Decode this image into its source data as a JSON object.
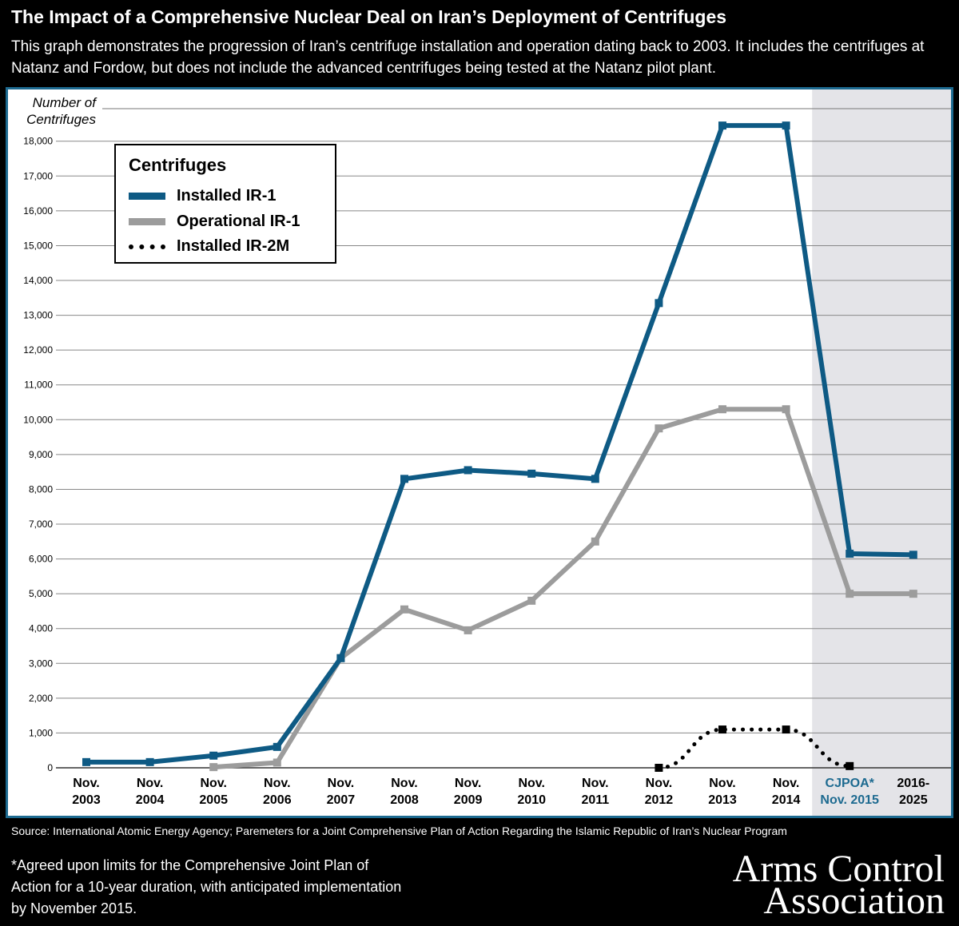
{
  "header": {
    "title": "The Impact of a Comprehensive Nuclear Deal on Iran’s Deployment of Centrifuges",
    "subtitle": "This graph demonstrates the progression of Iran’s centrifuge installation and operation dating back to 2003. It includes the centrifuges at Natanz and Fordow, but does not include the advanced centrifuges being tested at the Natanz pilot plant."
  },
  "footer": {
    "source": "Source: International Atomic Energy Agency; Paremeters for a Joint Comprehensive Plan of Action Regarding the Islamic Republic of Iran’s Nuclear Program",
    "note": "*Agreed upon limits for the Comprehensive Joint Plan of Action for a 10-year duration, with anticipated implementation by November 2015.",
    "logo_line1": "Arms Control",
    "logo_line2": "Association"
  },
  "chart_data": {
    "type": "line",
    "ylabel": "Number of Centrifuges",
    "ylim": [
      0,
      18500
    ],
    "yticks": [
      0,
      1000,
      2000,
      3000,
      4000,
      5000,
      6000,
      7000,
      8000,
      9000,
      10000,
      11000,
      12000,
      13000,
      14000,
      15000,
      16000,
      17000,
      18000
    ],
    "ytick_labels": [
      "0",
      "1,000",
      "2,000",
      "3,000",
      "4,000",
      "5,000",
      "6,000",
      "7,000",
      "8,000",
      "9,000",
      "10,000",
      "11,000",
      "12,000",
      "13,000",
      "14,000",
      "15,000",
      "16,000",
      "17,000",
      "18,000"
    ],
    "categories": [
      [
        "Nov.",
        "2003"
      ],
      [
        "Nov.",
        "2004"
      ],
      [
        "Nov.",
        "2005"
      ],
      [
        "Nov.",
        "2006"
      ],
      [
        "Nov.",
        "2007"
      ],
      [
        "Nov.",
        "2008"
      ],
      [
        "Nov.",
        "2009"
      ],
      [
        "Nov.",
        "2010"
      ],
      [
        "Nov.",
        "2011"
      ],
      [
        "Nov.",
        "2012"
      ],
      [
        "Nov.",
        "2013"
      ],
      [
        "Nov.",
        "2014"
      ],
      [
        "CJPOA*",
        "Nov. 2015"
      ],
      [
        "2016-",
        "2025"
      ]
    ],
    "highlight_categories": [
      12
    ],
    "shaded_region": {
      "from_index": 12,
      "to_index": 13,
      "color": "#e4e4e8"
    },
    "grid": true,
    "legend_title": "Centrifuges",
    "legend_position": "top-left",
    "series": [
      {
        "name": "Installed IR-1",
        "color": "#0e5a84",
        "style": "solid",
        "values": [
          164,
          164,
          350,
          600,
          3150,
          8300,
          8550,
          8450,
          8300,
          13350,
          18450,
          18450,
          6150,
          6120
        ]
      },
      {
        "name": "Operational IR-1",
        "color": "#9c9c9c",
        "style": "solid",
        "values": [
          null,
          null,
          20,
          150,
          3150,
          4550,
          3950,
          4800,
          6500,
          9750,
          10300,
          10300,
          5000,
          5000
        ]
      },
      {
        "name": "Installed IR-2M",
        "color": "#000000",
        "style": "dotted",
        "values": [
          null,
          null,
          null,
          null,
          null,
          null,
          null,
          null,
          null,
          0,
          1100,
          1100,
          50,
          null
        ]
      }
    ],
    "accent_color": "#1d6a90"
  }
}
